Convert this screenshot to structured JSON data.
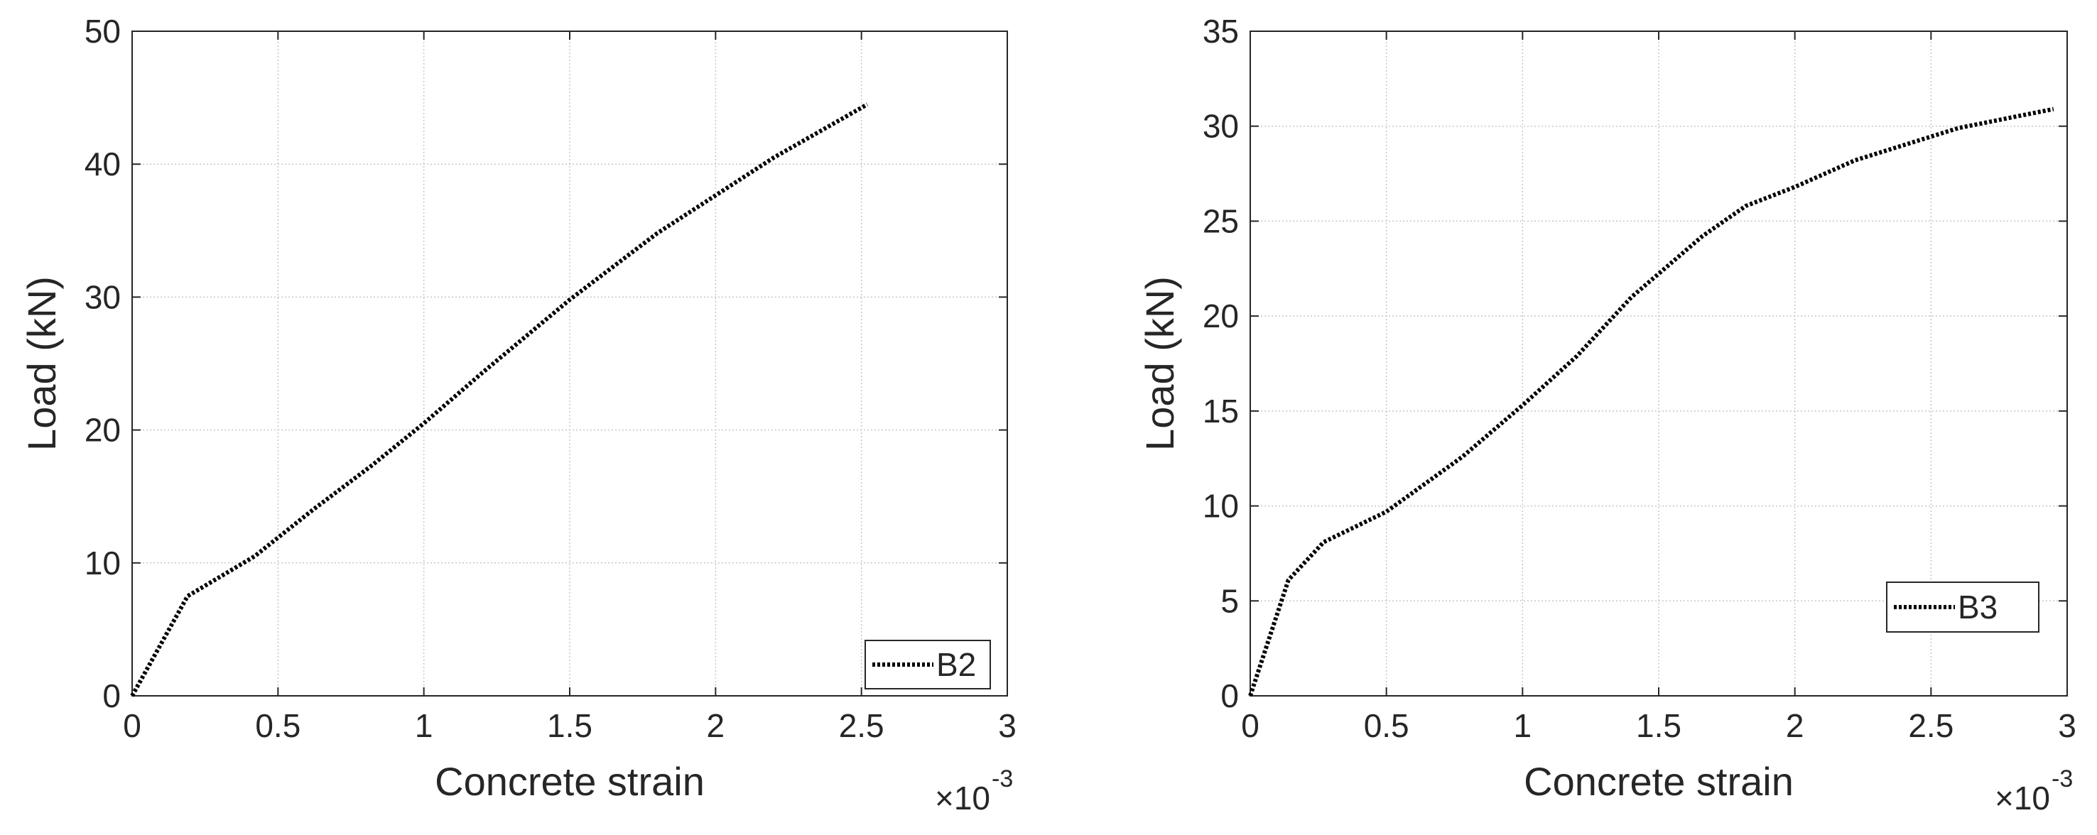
{
  "chart_data": [
    {
      "type": "line",
      "xlabel": "Concrete strain",
      "ylabel": "Load (kN)",
      "x_exponent_base": "×10",
      "x_exponent_power": "-3",
      "xlim": [
        0,
        3
      ],
      "ylim": [
        0,
        50
      ],
      "x_ticks": [
        0,
        0.5,
        1,
        1.5,
        2,
        2.5,
        3
      ],
      "x_tick_labels": [
        "0",
        "0.5",
        "1",
        "1.5",
        "2",
        "2.5",
        "3"
      ],
      "y_ticks": [
        0,
        10,
        20,
        30,
        40,
        50
      ],
      "y_tick_labels": [
        "0",
        "10",
        "20",
        "30",
        "40",
        "50"
      ],
      "grid": true,
      "legend_position": "bottom-right",
      "series": [
        {
          "name": "B2",
          "line_style": "dotted",
          "color": "#000000",
          "x": [
            0,
            0.19,
            0.42,
            0.62,
            0.82,
            1.0,
            1.2,
            1.5,
            1.8,
            2.2,
            2.52
          ],
          "y": [
            0,
            7.5,
            10.5,
            14.0,
            17.3,
            20.5,
            24.3,
            29.8,
            34.8,
            40.5,
            44.5
          ]
        }
      ]
    },
    {
      "type": "line",
      "xlabel": "Concrete strain",
      "ylabel": "Load (kN)",
      "x_exponent_base": "×10",
      "x_exponent_power": "-3",
      "xlim": [
        0,
        3
      ],
      "ylim": [
        0,
        35
      ],
      "x_ticks": [
        0,
        0.5,
        1,
        1.5,
        2,
        2.5,
        3
      ],
      "x_tick_labels": [
        "0",
        "0.5",
        "1",
        "1.5",
        "2",
        "2.5",
        "3"
      ],
      "y_ticks": [
        0,
        5,
        10,
        15,
        20,
        25,
        30,
        35
      ],
      "y_tick_labels": [
        "0",
        "5",
        "10",
        "15",
        "20",
        "25",
        "30",
        "35"
      ],
      "grid": true,
      "legend_position": "lower-right",
      "series": [
        {
          "name": "B3",
          "line_style": "dotted",
          "color": "#000000",
          "x": [
            0,
            0.14,
            0.27,
            0.5,
            0.78,
            1.0,
            1.2,
            1.4,
            1.66,
            1.82,
            2.0,
            2.22,
            2.6,
            2.95
          ],
          "y": [
            0,
            6.1,
            8.1,
            9.7,
            12.6,
            15.3,
            17.9,
            21.0,
            24.2,
            25.8,
            26.8,
            28.2,
            29.9,
            30.9
          ]
        }
      ]
    }
  ]
}
